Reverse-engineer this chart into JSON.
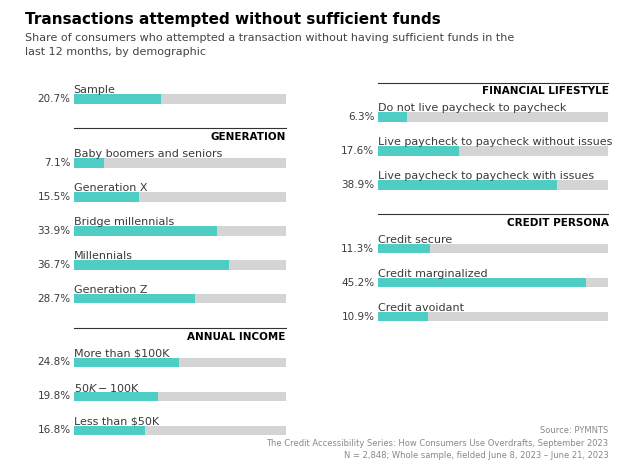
{
  "title": "Transactions attempted without sufficient funds",
  "subtitle": "Share of consumers who attempted a transaction without having sufficient funds in the\nlast 12 months, by demographic",
  "footer": "Source: PYMNTS\nThe Credit Accessibility Series: How Consumers Use Overdrafts, September 2023\nN = 2,848; Whole sample, fielded June 8, 2023 – June 21, 2023",
  "left_sections": [
    {
      "header": null,
      "items": [
        {
          "label": "Sample",
          "value": 20.7
        }
      ]
    },
    {
      "header": "GENERATION",
      "items": [
        {
          "label": "Baby boomers and seniors",
          "value": 7.1
        },
        {
          "label": "Generation X",
          "value": 15.5
        },
        {
          "label": "Bridge millennials",
          "value": 33.9
        },
        {
          "label": "Millennials",
          "value": 36.7
        },
        {
          "label": "Generation Z",
          "value": 28.7
        }
      ]
    },
    {
      "header": "ANNUAL INCOME",
      "items": [
        {
          "label": "More than $100K",
          "value": 24.8
        },
        {
          "label": "$50K - $100K",
          "value": 19.8
        },
        {
          "label": "Less than $50K",
          "value": 16.8
        }
      ]
    }
  ],
  "right_sections": [
    {
      "header": "FINANCIAL LIFESTYLE",
      "items": [
        {
          "label": "Do not live paycheck to paycheck",
          "value": 6.3
        },
        {
          "label": "Live paycheck to paycheck without issues",
          "value": 17.6
        },
        {
          "label": "Live paycheck to paycheck with issues",
          "value": 38.9
        }
      ]
    },
    {
      "header": "CREDIT PERSONA",
      "items": [
        {
          "label": "Credit secure",
          "value": 11.3
        },
        {
          "label": "Credit marginalized",
          "value": 45.2
        },
        {
          "label": "Credit avoidant",
          "value": 10.9
        }
      ]
    }
  ],
  "bar_color": "#4ecdc4",
  "bar_bg_color": "#d4d4d4",
  "bar_max": 50,
  "label_color": "#3a3a3a",
  "value_color": "#3a3a3a",
  "header_color": "#000000",
  "title_color": "#000000",
  "subtitle_color": "#444444",
  "footer_color": "#888888",
  "bg_color": "#ffffff",
  "header_fontsize": 7.5,
  "label_fontsize": 8.0,
  "value_fontsize": 7.5,
  "title_fontsize": 11,
  "subtitle_fontsize": 8.0
}
